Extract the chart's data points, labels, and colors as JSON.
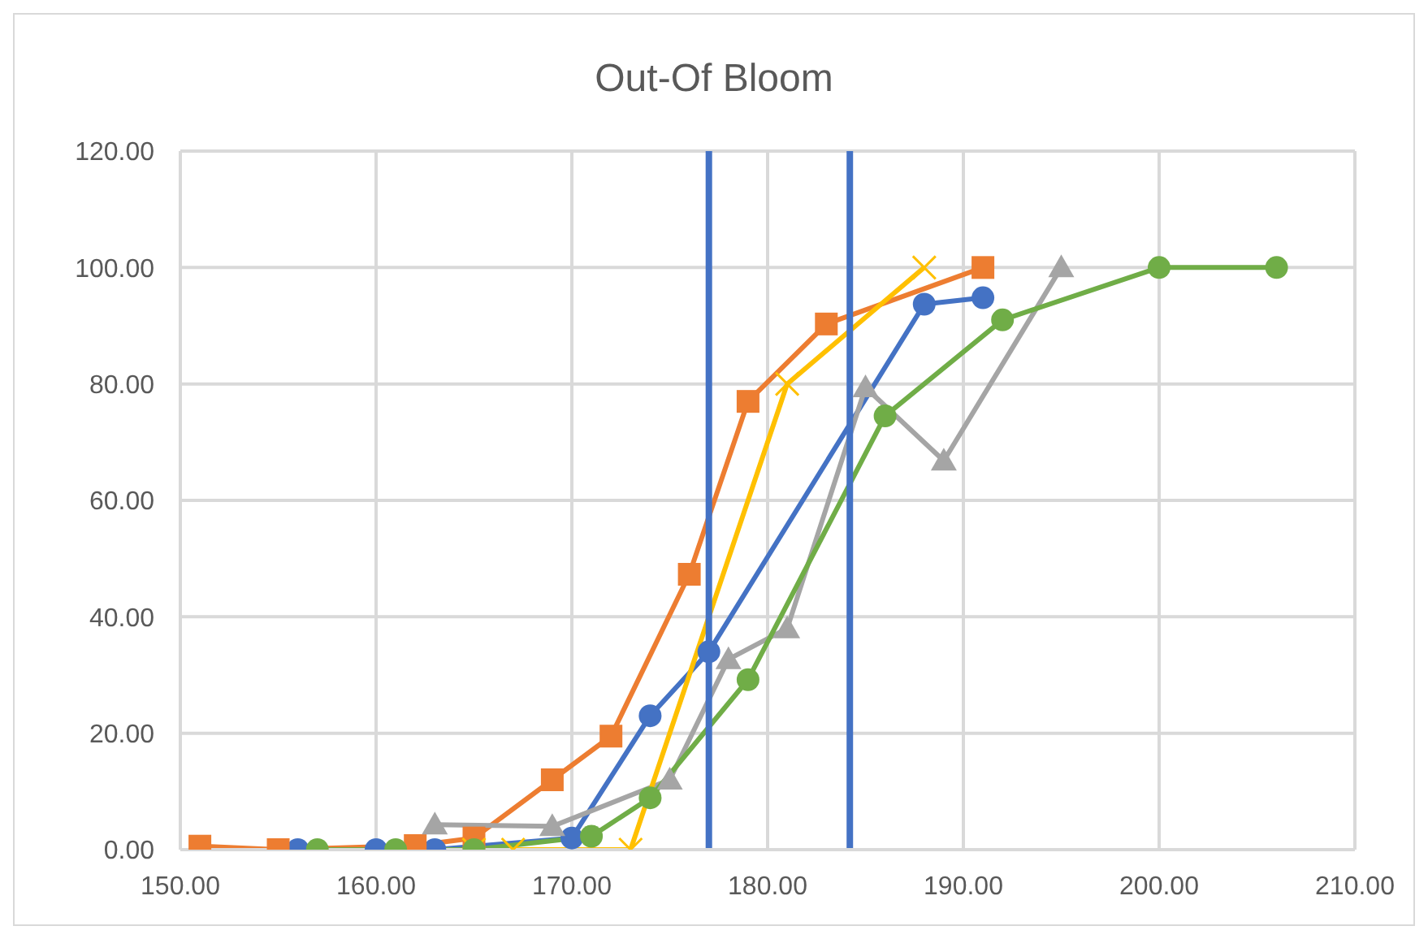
{
  "chart_data": {
    "type": "line",
    "title": "Out-Of Bloom",
    "xlim": [
      150,
      210
    ],
    "xticks": [
      {
        "value": 150,
        "label": "150.00"
      },
      {
        "value": 160,
        "label": "160.00"
      },
      {
        "value": 170,
        "label": "170.00"
      },
      {
        "value": 180,
        "label": "180.00"
      },
      {
        "value": 190,
        "label": "190.00"
      },
      {
        "value": 200,
        "label": "200.00"
      },
      {
        "value": 210,
        "label": "210.00"
      }
    ],
    "ylim": [
      0,
      120
    ],
    "yticks": [
      {
        "value": 0,
        "label": "0.00"
      },
      {
        "value": 20,
        "label": "20.00"
      },
      {
        "value": 40,
        "label": "40.00"
      },
      {
        "value": 60,
        "label": "60.00"
      },
      {
        "value": 80,
        "label": "80.00"
      },
      {
        "value": 100,
        "label": "100.00"
      },
      {
        "value": 120,
        "label": "120.00"
      }
    ],
    "grid": true,
    "line_style": "solid",
    "series": [
      {
        "color": "#4472c4",
        "marker": "circle",
        "x": [
          156,
          160,
          163,
          170,
          174,
          177,
          188,
          191
        ],
        "values": [
          0,
          0,
          0,
          2,
          23,
          34,
          93.7,
          94.8
        ]
      },
      {
        "color": "#ed7d31",
        "marker": "square",
        "x": [
          151,
          155,
          162,
          165,
          169,
          172,
          176,
          179,
          183,
          191
        ],
        "values": [
          0.6,
          0,
          0.7,
          2,
          12,
          19.5,
          47.3,
          77,
          90.3,
          100
        ]
      },
      {
        "color": "#a5a5a5",
        "marker": "triangle",
        "x": [
          163,
          169,
          175,
          178,
          181,
          185,
          189,
          195
        ],
        "values": [
          4.3,
          4,
          12,
          32.7,
          38,
          79.4,
          66.8,
          100
        ]
      },
      {
        "color": "#ffc000",
        "marker": "cross",
        "x": [
          165,
          167,
          173,
          181,
          188
        ],
        "values": [
          0,
          0,
          0,
          80,
          100
        ]
      },
      {
        "color": "#70ad47",
        "marker": "circle",
        "x": [
          157,
          161,
          165,
          171,
          174,
          179,
          186,
          192,
          200,
          206
        ],
        "values": [
          0,
          0,
          0,
          2.3,
          8.9,
          29.2,
          74.5,
          91,
          100,
          100
        ]
      }
    ],
    "ref_lines": [
      {
        "axis": "x",
        "value": 177,
        "color": "#4472c4"
      },
      {
        "axis": "x",
        "value": 184.2,
        "color": "#4472c4"
      }
    ]
  }
}
